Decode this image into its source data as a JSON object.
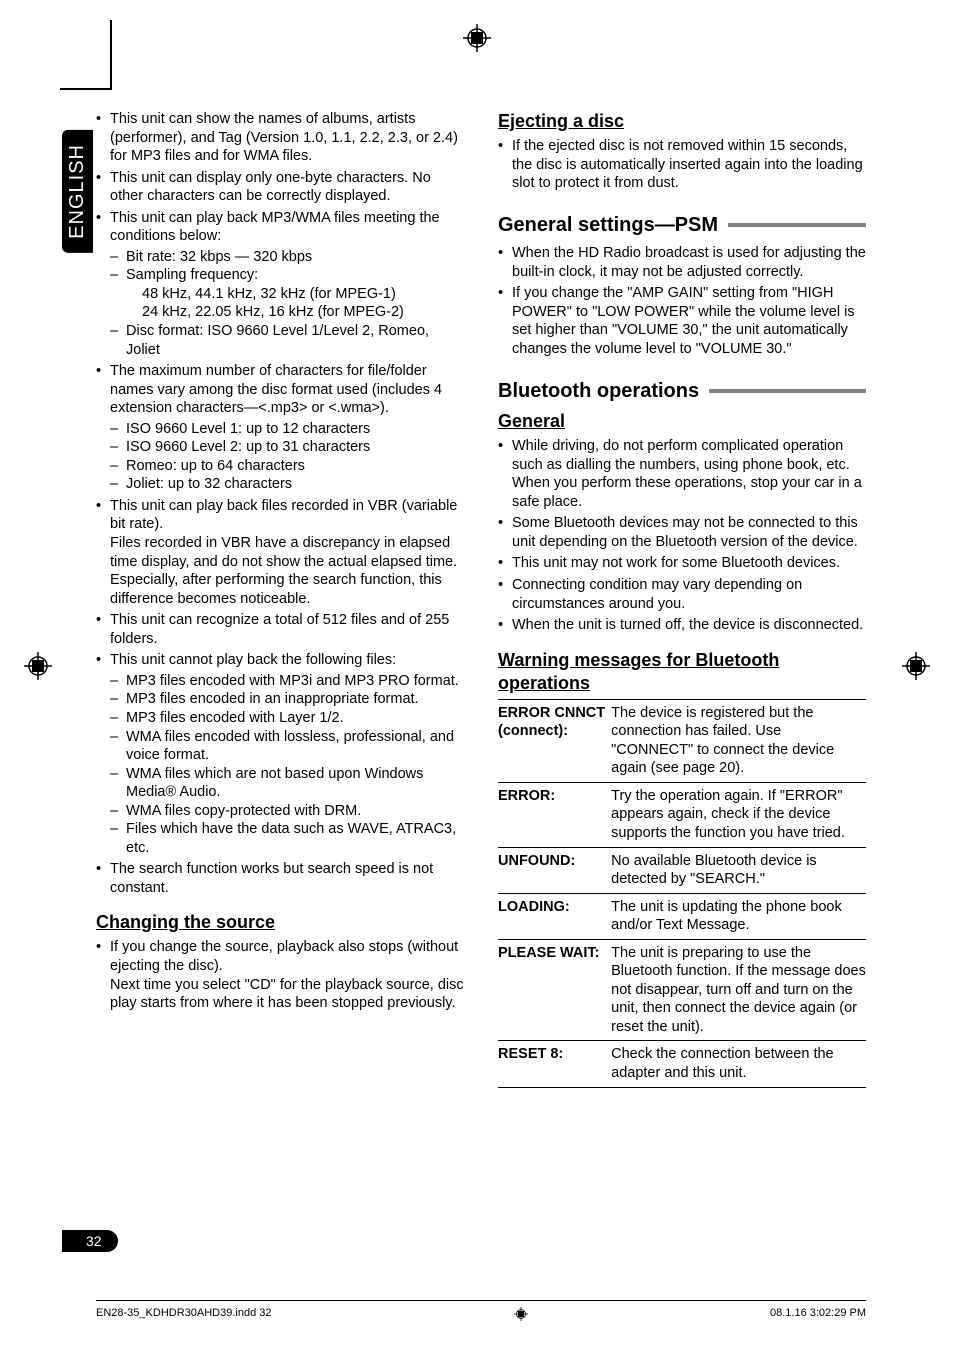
{
  "page": {
    "language_tab": "ENGLISH",
    "page_number": "32",
    "footer_left": "EN28-35_KDHDR30AHD39.indd   32",
    "footer_right": "08.1.16   3:02:29 PM"
  },
  "left": {
    "bullets": [
      {
        "text": "This unit can show the names of albums, artists (performer), and Tag (Version 1.0, 1.1, 2.2, 2.3, or 2.4) for MP3 files and for WMA files."
      },
      {
        "text": "This unit can display only one-byte characters. No other characters can be correctly displayed."
      },
      {
        "text": "This unit can play back MP3/WMA files meeting the conditions below:",
        "dashes": [
          "Bit rate: 32 kbps — 320 kbps",
          "Sampling frequency:\n48 kHz, 44.1 kHz, 32 kHz (for MPEG-1)\n24 kHz, 22.05 kHz, 16 kHz (for MPEG-2)",
          "Disc format: ISO 9660 Level 1/Level 2, Romeo, Joliet"
        ]
      },
      {
        "text": "The maximum number of characters for file/folder names vary among the disc format used (includes 4 extension characters—<.mp3> or <.wma>).",
        "dashes": [
          "ISO 9660 Level 1: up to 12 characters",
          "ISO 9660 Level 2: up to 31 characters",
          "Romeo: up to 64 characters",
          "Joliet: up to 32 characters"
        ]
      },
      {
        "text": "This unit can play back files recorded in VBR (variable bit rate).",
        "after": "Files recorded in VBR have a discrepancy in elapsed time display, and do not show the actual elapsed time. Especially, after performing the search function, this difference becomes noticeable."
      },
      {
        "text": "This unit can recognize a total of 512 files and of 255 folders."
      },
      {
        "text": "This unit cannot play back the following files:",
        "dashes": [
          "MP3 files encoded with MP3i and MP3 PRO format.",
          "MP3 files encoded in an inappropriate format.",
          "MP3 files encoded with Layer 1/2.",
          "WMA files encoded with lossless, professional, and voice format.",
          "WMA files which are not based upon Windows Media® Audio.",
          "WMA files copy-protected with DRM.",
          "Files which have the data such as WAVE, ATRAC3, etc."
        ]
      },
      {
        "text": "The search function works but search speed is not constant."
      }
    ],
    "changing_source": {
      "heading": "Changing the source",
      "bullet": "If you change the source, playback also stops (without ejecting the disc).",
      "after": "Next time you select \"CD\" for the playback source, disc play starts from where it has been stopped previously."
    }
  },
  "right": {
    "ejecting": {
      "heading": "Ejecting a disc",
      "bullet": "If the ejected disc is not removed within 15 seconds, the disc is automatically inserted again into the loading slot to protect it from dust."
    },
    "psm": {
      "heading": "General settings—PSM",
      "bullets": [
        "When the HD Radio broadcast is used for adjusting the built-in clock, it may not be adjusted correctly.",
        "If you change the \"AMP GAIN\" setting from \"HIGH POWER\" to \"LOW POWER\" while the volume level is set higher than \"VOLUME 30,\" the unit automatically changes the volume level to \"VOLUME 30.\""
      ]
    },
    "bluetooth": {
      "heading": "Bluetooth operations",
      "general_heading": "General",
      "general_bullets": [
        "While driving, do not perform complicated operation such as dialling the numbers, using phone book, etc. When you perform these operations, stop your car in a safe place.",
        "Some Bluetooth devices may not be connected to this unit depending on the Bluetooth version of the device.",
        "This unit may not work for some Bluetooth devices.",
        "Connecting condition may vary depending on circumstances around you.",
        "When the unit is turned off, the device is disconnected."
      ],
      "warning_heading": "Warning messages for Bluetooth operations",
      "messages": [
        {
          "k1": "ERROR CNNCT",
          "k2": "(connect):",
          "v": "The device is registered but the connection has failed. Use \"CONNECT\" to connect the device again (see page 20)."
        },
        {
          "k1": "ERROR:",
          "v": "Try the operation again. If \"ERROR\" appears again, check if the device supports the function you have tried."
        },
        {
          "k1": "UNFOUND:",
          "v": "No available Bluetooth device is detected by \"SEARCH.\""
        },
        {
          "k1": "LOADING:",
          "v": "The unit is updating the phone book and/or Text Message."
        },
        {
          "k1": "PLEASE WAIT:",
          "v": "The unit is preparing to use the Bluetooth function. If the message does not disappear, turn off and turn on the unit, then connect the device again (or reset the unit)."
        },
        {
          "k1": "RESET 8:",
          "v": "Check the connection between the adapter and this unit."
        }
      ]
    }
  }
}
